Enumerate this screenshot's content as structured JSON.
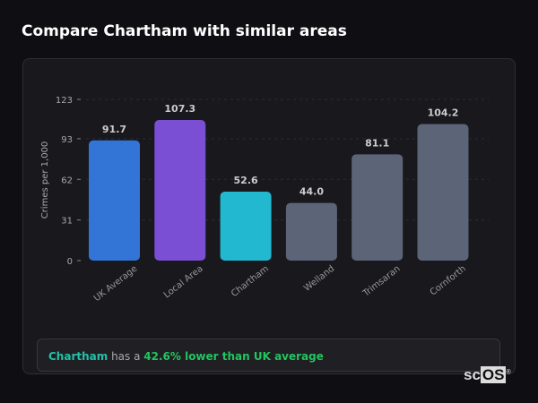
{
  "header": {
    "title": "Compare Chartham with similar areas"
  },
  "chart_data": {
    "type": "bar",
    "ylabel": "Crimes per 1,000",
    "ylim": [
      0,
      123
    ],
    "yticks": [
      0,
      31,
      62,
      93,
      123
    ],
    "grid": true,
    "categories": [
      "UK Average",
      "Local Area",
      "Chartham",
      "Welland",
      "Trimsaran",
      "Cornforth"
    ],
    "values": [
      91.7,
      107.3,
      52.6,
      44.0,
      81.1,
      104.2
    ],
    "labels": [
      "91.7",
      "107.3",
      "52.6",
      "44.0",
      "81.1",
      "104.2"
    ],
    "colors": [
      "#3375d6",
      "#7a4fd4",
      "#22b8cf",
      "#5c6577",
      "#5c6577",
      "#5c6577"
    ]
  },
  "summary": {
    "area": "Chartham",
    "middle": " has a ",
    "highlight": "42.6% lower than UK average"
  },
  "logo": {
    "text_a": "sc",
    "text_b": "OS",
    "mark": "®"
  }
}
